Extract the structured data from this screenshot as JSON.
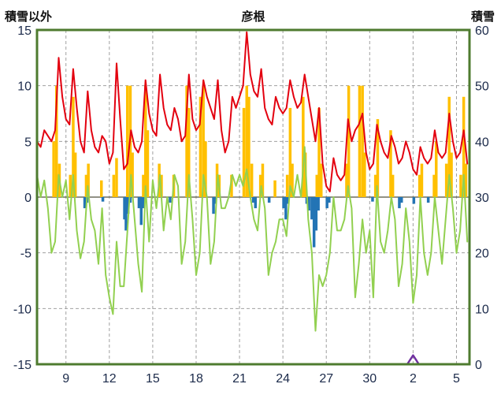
{
  "chart_data": {
    "type": "line+bar",
    "title": "彦根",
    "left_axis_label": "積雪以外",
    "right_axis_label": "積雪",
    "x_domain": [
      7.0,
      36.9
    ],
    "left_ylim": [
      -15,
      15
    ],
    "right_ylim": [
      0,
      60
    ],
    "x_ticks": [
      {
        "day": 9,
        "label": "9"
      },
      {
        "day": 12,
        "label": "12"
      },
      {
        "day": 15,
        "label": "15"
      },
      {
        "day": 18,
        "label": "18"
      },
      {
        "day": 21,
        "label": "21"
      },
      {
        "day": 24,
        "label": "24"
      },
      {
        "day": 27,
        "label": "27"
      },
      {
        "day": 30,
        "label": "30"
      },
      {
        "day": 33,
        "label": "2"
      },
      {
        "day": 36,
        "label": "5"
      }
    ],
    "left_ticks": [
      15,
      10,
      5,
      0,
      -5,
      -10,
      -15
    ],
    "right_ticks": [
      60,
      50,
      40,
      30,
      20,
      10,
      0
    ],
    "grid": {
      "h_dashed": [
        10,
        5,
        -5,
        -10
      ],
      "zero_line": 0
    },
    "colors": {
      "frame": "#4e7b2f",
      "grid": "#a0a0a0",
      "zero": "#6e6e5e",
      "tick_label": "#1b2a4a",
      "red": "#e3000f",
      "green": "#92d050",
      "orange": "#ffc000",
      "blue": "#2374b5",
      "purple": "#7030a0",
      "background": "#ffffff"
    },
    "series": [
      {
        "name": "orange-bars-sunshine",
        "type": "bar",
        "color": "#ffc000",
        "bar_width": 3.5,
        "points": [
          [
            8.15,
            5
          ],
          [
            8.35,
            10
          ],
          [
            8.55,
            3
          ],
          [
            9.3,
            2
          ],
          [
            9.5,
            9
          ],
          [
            9.65,
            4
          ],
          [
            10.4,
            2
          ],
          [
            10.55,
            3
          ],
          [
            11.45,
            1.5
          ],
          [
            12.3,
            2
          ],
          [
            12.5,
            3.5
          ],
          [
            13.25,
            10
          ],
          [
            13.45,
            10
          ],
          [
            13.6,
            4
          ],
          [
            14.35,
            2
          ],
          [
            14.5,
            10
          ],
          [
            14.65,
            6
          ],
          [
            15.45,
            3
          ],
          [
            15.6,
            2
          ],
          [
            16.45,
            2
          ],
          [
            17.35,
            10
          ],
          [
            17.5,
            8
          ],
          [
            18.3,
            9
          ],
          [
            18.5,
            10
          ],
          [
            18.65,
            5
          ],
          [
            19.45,
            3
          ],
          [
            19.6,
            2
          ],
          [
            20.45,
            2
          ],
          [
            21.3,
            8
          ],
          [
            21.5,
            10
          ],
          [
            21.65,
            9
          ],
          [
            21.85,
            3
          ],
          [
            22.45,
            2
          ],
          [
            22.6,
            3
          ],
          [
            23.45,
            1.5
          ],
          [
            24.3,
            2
          ],
          [
            24.5,
            8
          ],
          [
            24.65,
            3
          ],
          [
            25.4,
            9
          ],
          [
            25.55,
            4
          ],
          [
            26.35,
            2
          ],
          [
            26.5,
            8
          ],
          [
            26.65,
            3
          ],
          [
            28.4,
            3
          ],
          [
            28.55,
            10
          ],
          [
            29.3,
            10
          ],
          [
            29.5,
            10
          ],
          [
            29.65,
            4
          ],
          [
            30.4,
            2
          ],
          [
            30.55,
            7
          ],
          [
            31.45,
            6
          ],
          [
            31.6,
            2
          ],
          [
            33.45,
            2
          ],
          [
            33.6,
            3
          ],
          [
            34.45,
            2
          ],
          [
            34.6,
            5
          ],
          [
            35.3,
            3
          ],
          [
            35.5,
            9
          ],
          [
            35.65,
            4
          ],
          [
            36.3,
            2
          ],
          [
            36.5,
            9
          ],
          [
            36.65,
            3
          ]
        ]
      },
      {
        "name": "blue-bars-precipitation",
        "type": "bar",
        "color": "#2374b5",
        "bar_width": 3.5,
        "points": [
          [
            10.3,
            -1
          ],
          [
            10.45,
            -0.5
          ],
          [
            11.55,
            -0.4
          ],
          [
            13.05,
            -2
          ],
          [
            13.15,
            -3
          ],
          [
            13.3,
            -1.5
          ],
          [
            13.45,
            -0.5
          ],
          [
            14.05,
            -1
          ],
          [
            14.2,
            -2.5
          ],
          [
            14.35,
            -1
          ],
          [
            16.2,
            -0.5
          ],
          [
            19.2,
            -1.5
          ],
          [
            19.35,
            -0.6
          ],
          [
            21.95,
            -0.5
          ],
          [
            22.1,
            -1
          ],
          [
            23.05,
            -0.5
          ],
          [
            24.05,
            -1
          ],
          [
            24.2,
            -2
          ],
          [
            24.35,
            -0.6
          ],
          [
            25.65,
            -0.6
          ],
          [
            25.8,
            -1.2
          ],
          [
            26.0,
            -2
          ],
          [
            26.15,
            -4.5
          ],
          [
            26.3,
            -3
          ],
          [
            26.45,
            -1.2
          ],
          [
            27.05,
            -1
          ],
          [
            27.2,
            -0.5
          ],
          [
            30.2,
            -0.4
          ],
          [
            32.05,
            -1
          ],
          [
            32.2,
            -0.5
          ],
          [
            33.05,
            -0.6
          ],
          [
            34.05,
            -0.5
          ]
        ]
      },
      {
        "name": "snow-depth-purple-line",
        "type": "line",
        "axis": "right",
        "color": "#7030a0",
        "width": 2.5,
        "points": [
          [
            7.0,
            0
          ],
          [
            32.6,
            0
          ],
          [
            32.8,
            0.8
          ],
          [
            33.0,
            1.6
          ],
          [
            33.2,
            0.8
          ],
          [
            33.4,
            0
          ],
          [
            36.85,
            0
          ]
        ]
      },
      {
        "name": "green-line-low-temperature",
        "type": "line",
        "color": "#92d050",
        "width": 2,
        "x_start": 7.0,
        "x_step": 0.25,
        "values": [
          2,
          0,
          1.5,
          -1,
          -5,
          -4,
          2,
          0,
          1.5,
          -2,
          2,
          -3,
          -5.5,
          -4,
          1,
          -2,
          -3,
          -6,
          -1,
          -7,
          -9,
          -10.5,
          -4,
          -8,
          -8,
          -3,
          2,
          -2,
          -6,
          -8.5,
          1,
          -4,
          1.5,
          -1,
          2,
          -3,
          0,
          -2,
          2,
          1,
          -6,
          -4,
          2,
          -2,
          -7,
          -5,
          2,
          0,
          -6,
          -4,
          2,
          -1,
          -1,
          0,
          2,
          1,
          2,
          1,
          2.5,
          0,
          -2,
          -3,
          1,
          -1,
          -7,
          -5,
          -4,
          -2,
          -2,
          -3.5,
          1,
          0,
          2,
          0,
          4.5,
          -2,
          -5,
          -12,
          -7,
          -8,
          -7,
          -5,
          0,
          -3,
          -3,
          -2,
          1,
          -1,
          -9,
          -6,
          -2,
          -5,
          -3,
          -9,
          1,
          -4,
          -5,
          -3,
          0,
          -2,
          -8,
          -6,
          -1,
          -4,
          -9.5,
          -7,
          0,
          -5,
          -7,
          -5,
          0,
          -3,
          -6,
          -2,
          2,
          -1,
          -5,
          -3,
          2,
          -4
        ]
      },
      {
        "name": "red-line-high-temperature",
        "type": "line",
        "color": "#e3000f",
        "width": 2,
        "x_start": 7.0,
        "x_step": 0.25,
        "values": [
          5,
          4.5,
          6,
          5.5,
          5,
          6,
          12.5,
          9,
          7,
          6.5,
          11.5,
          8,
          5,
          4,
          9.5,
          6,
          4.5,
          4,
          5.5,
          5,
          3,
          4,
          12,
          7,
          2.5,
          3,
          6,
          4.5,
          4,
          5,
          10.5,
          7.5,
          6,
          5.5,
          11,
          8,
          6.5,
          6,
          8,
          7,
          5,
          5.5,
          11,
          7,
          6,
          6.5,
          10.5,
          9,
          8,
          7,
          10.5,
          6,
          4,
          5,
          9,
          8,
          9,
          10,
          14.8,
          11,
          9.5,
          9,
          11.5,
          8,
          7,
          6.5,
          9,
          8,
          7.5,
          8,
          10.5,
          9,
          8,
          8.5,
          11,
          9,
          7,
          5,
          8,
          3,
          1,
          0.5,
          3.5,
          2,
          1.5,
          2,
          7,
          5,
          6,
          6.5,
          7.5,
          4,
          2.5,
          3,
          6.5,
          5,
          4,
          3.5,
          5.5,
          4.5,
          3,
          3.5,
          5,
          4,
          2.5,
          2,
          4.5,
          3.5,
          3,
          3.5,
          6,
          4,
          3.5,
          4,
          7.5,
          5,
          3.5,
          4,
          6,
          3
        ]
      }
    ]
  }
}
